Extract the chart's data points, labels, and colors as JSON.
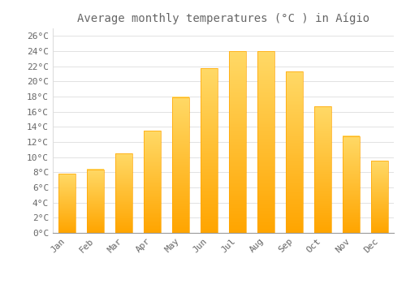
{
  "title": "Average monthly temperatures (°C ) in Aígio",
  "months": [
    "Jan",
    "Feb",
    "Mar",
    "Apr",
    "May",
    "Jun",
    "Jul",
    "Aug",
    "Sep",
    "Oct",
    "Nov",
    "Dec"
  ],
  "values": [
    7.8,
    8.4,
    10.5,
    13.5,
    17.9,
    21.7,
    24.0,
    24.0,
    21.3,
    16.7,
    12.8,
    9.5
  ],
  "bar_color_bottom": "#FFA500",
  "bar_color_top": "#FFD966",
  "background_color": "#FFFFFF",
  "grid_color": "#DDDDDD",
  "text_color": "#666666",
  "title_fontsize": 10,
  "tick_fontsize": 8,
  "ylim": [
    0,
    27
  ],
  "yticks": [
    0,
    2,
    4,
    6,
    8,
    10,
    12,
    14,
    16,
    18,
    20,
    22,
    24,
    26
  ]
}
